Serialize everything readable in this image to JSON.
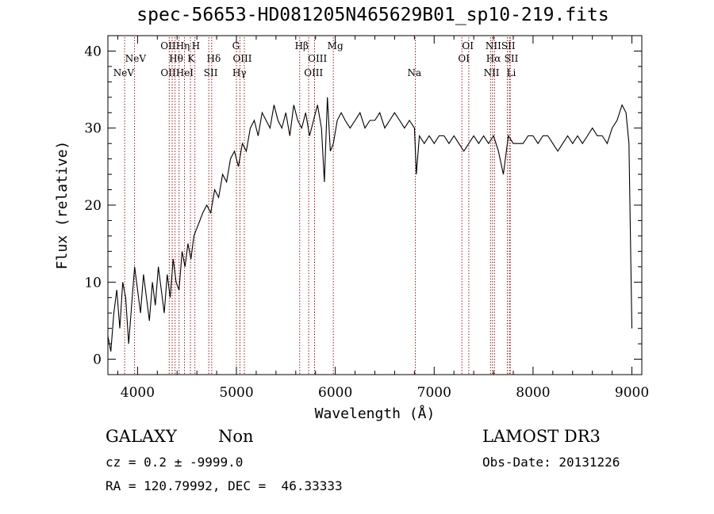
{
  "chart_data": {
    "type": "line",
    "title": "spec-56653-HD081205N465629B01_sp10-219.fits",
    "xlabel": "Wavelength (Å)",
    "ylabel": "Flux (relative)",
    "xlim": [
      3700,
      9100
    ],
    "ylim": [
      -2,
      42
    ],
    "xticks": [
      4000,
      5000,
      6000,
      7000,
      8000,
      9000
    ],
    "yticks": [
      0,
      10,
      20,
      30,
      40
    ],
    "series": [
      {
        "name": "flux",
        "x": [
          3700,
          3730,
          3760,
          3790,
          3820,
          3850,
          3880,
          3910,
          3940,
          3970,
          4000,
          4030,
          4060,
          4090,
          4120,
          4150,
          4180,
          4210,
          4240,
          4270,
          4300,
          4330,
          4360,
          4390,
          4420,
          4450,
          4480,
          4510,
          4540,
          4570,
          4600,
          4630,
          4660,
          4700,
          4740,
          4780,
          4820,
          4860,
          4900,
          4940,
          4980,
          5020,
          5060,
          5100,
          5140,
          5180,
          5220,
          5260,
          5300,
          5340,
          5380,
          5420,
          5460,
          5500,
          5540,
          5580,
          5620,
          5660,
          5700,
          5740,
          5780,
          5820,
          5860,
          5890,
          5920,
          5950,
          5980,
          6020,
          6060,
          6100,
          6150,
          6200,
          6250,
          6300,
          6350,
          6400,
          6450,
          6500,
          6550,
          6600,
          6650,
          6700,
          6750,
          6800,
          6820,
          6850,
          6900,
          6950,
          7000,
          7050,
          7100,
          7150,
          7200,
          7250,
          7300,
          7350,
          7400,
          7450,
          7500,
          7550,
          7600,
          7650,
          7700,
          7750,
          7800,
          7850,
          7900,
          7950,
          8000,
          8050,
          8100,
          8150,
          8200,
          8250,
          8300,
          8350,
          8400,
          8450,
          8500,
          8550,
          8600,
          8650,
          8700,
          8750,
          8800,
          8850,
          8900,
          8940,
          8970,
          9000
        ],
        "values": [
          3,
          1,
          6,
          9,
          4,
          10,
          8,
          2,
          7,
          12,
          9,
          6,
          11,
          8,
          5,
          10,
          7,
          12,
          9,
          6,
          11,
          8,
          13,
          10,
          9,
          14,
          12,
          15,
          13,
          16,
          17,
          18,
          19,
          20,
          19,
          22,
          21,
          24,
          23,
          26,
          27,
          25,
          28,
          27,
          30,
          31,
          29,
          32,
          31,
          30,
          33,
          31,
          30,
          32,
          29,
          33,
          31,
          30,
          32,
          29,
          31,
          33,
          30,
          23,
          34,
          27,
          28,
          31,
          32,
          31,
          30,
          31,
          32,
          30,
          31,
          31,
          32,
          30,
          31,
          32,
          31,
          30,
          31,
          30,
          24,
          29,
          28,
          29,
          28,
          29,
          29,
          28,
          29,
          28,
          27,
          28,
          29,
          28,
          29,
          28,
          29,
          27,
          24,
          29,
          28,
          28,
          28,
          29,
          29,
          28,
          29,
          29,
          28,
          27,
          28,
          29,
          28,
          29,
          28,
          29,
          30,
          29,
          29,
          28,
          30,
          31,
          33,
          32,
          28,
          4
        ]
      }
    ],
    "lines": [
      {
        "label": "NeV",
        "x": 3869
      },
      {
        "label": "NeV",
        "x": 3970
      },
      {
        "label": "OII",
        "x": 4320
      },
      {
        "label": "Hθ",
        "x": 4380
      },
      {
        "label": "OII",
        "x": 4350
      },
      {
        "label": "Hη",
        "x": 4420
      },
      {
        "label": "HeI",
        "x": 4475
      },
      {
        "label": "K",
        "x": 4535
      },
      {
        "label": "H",
        "x": 4580
      },
      {
        "label": "SII",
        "x": 4720
      },
      {
        "label": "Hδ",
        "x": 4750
      },
      {
        "label": "G",
        "x": 5000
      },
      {
        "label": "Hγ",
        "x": 5035
      },
      {
        "label": "OIII",
        "x": 5080
      },
      {
        "label": "Hβ",
        "x": 5640
      },
      {
        "label": "OIII",
        "x": 5730
      },
      {
        "label": "OIII",
        "x": 5790
      },
      {
        "label": "Mg",
        "x": 5980
      },
      {
        "label": "Na",
        "x": 6810
      },
      {
        "label": "OI",
        "x": 7280
      },
      {
        "label": "OI",
        "x": 7350
      },
      {
        "label": "NII",
        "x": 7570
      },
      {
        "label": "Hα",
        "x": 7590
      },
      {
        "label": "NII",
        "x": 7610
      },
      {
        "label": "SII",
        "x": 7740
      },
      {
        "label": "SII",
        "x": 7760
      },
      {
        "label": "Li",
        "x": 7770
      }
    ],
    "line_labels": [
      {
        "text": "NeV",
        "x": 3980,
        "row": 1
      },
      {
        "text": "NeV",
        "x": 3860,
        "row": 2
      },
      {
        "text": "OIIHη",
        "x": 4380,
        "row": 0
      },
      {
        "text": "H",
        "x": 4590,
        "row": 0
      },
      {
        "text": "Hθ",
        "x": 4390,
        "row": 1
      },
      {
        "text": "K",
        "x": 4540,
        "row": 1
      },
      {
        "text": "OIIHeI",
        "x": 4400,
        "row": 2
      },
      {
        "text": "Hδ",
        "x": 4770,
        "row": 1
      },
      {
        "text": "SII",
        "x": 4740,
        "row": 2
      },
      {
        "text": "G",
        "x": 4995,
        "row": 0
      },
      {
        "text": "OIII",
        "x": 5060,
        "row": 1
      },
      {
        "text": "Hγ",
        "x": 5030,
        "row": 2
      },
      {
        "text": "Hβ",
        "x": 5660,
        "row": 0
      },
      {
        "text": "OIII",
        "x": 5820,
        "row": 1
      },
      {
        "text": "OIII",
        "x": 5780,
        "row": 2
      },
      {
        "text": "Mg",
        "x": 6000,
        "row": 0
      },
      {
        "text": "Na",
        "x": 6800,
        "row": 2
      },
      {
        "text": "OI",
        "x": 7340,
        "row": 0
      },
      {
        "text": "OI",
        "x": 7300,
        "row": 1
      },
      {
        "text": "NIISII",
        "x": 7670,
        "row": 0
      },
      {
        "text": "Hα",
        "x": 7600,
        "row": 1
      },
      {
        "text": "SII",
        "x": 7780,
        "row": 1
      },
      {
        "text": "NII",
        "x": 7580,
        "row": 2
      },
      {
        "text": "Li",
        "x": 7780,
        "row": 2
      }
    ]
  },
  "info": {
    "object_class": "GALAXY",
    "subclass": "Non",
    "cz": "cz = 0.2 ± -9999.0",
    "coords": "RA = 120.79992, DEC =  46.33333",
    "survey": "LAMOST DR3",
    "obs_date": "Obs-Date: 20131226"
  },
  "colors": {
    "line": "#000000",
    "marker": "#8b0000",
    "background": "#ffffff"
  }
}
